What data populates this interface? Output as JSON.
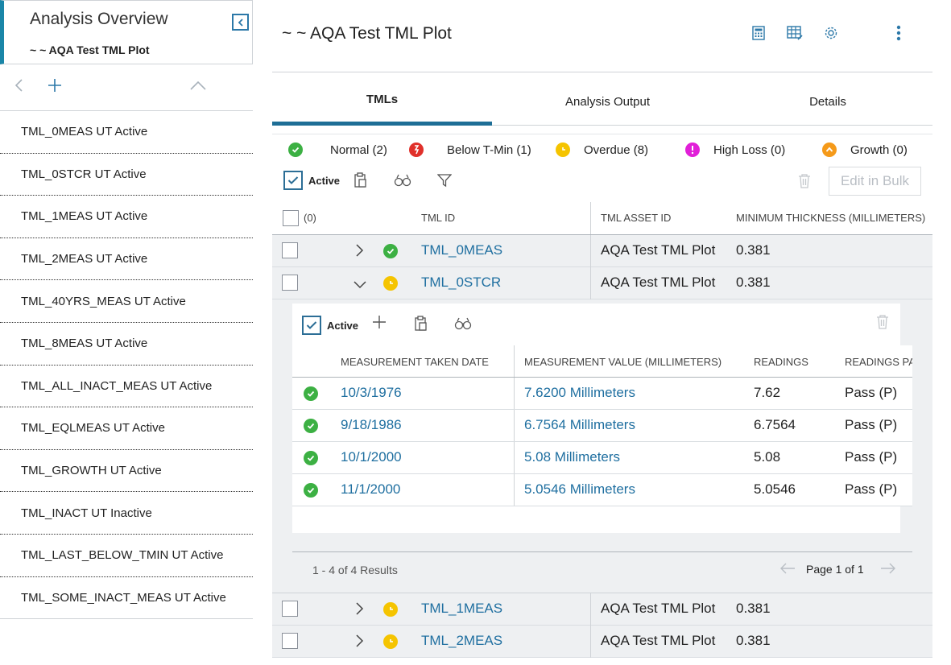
{
  "left": {
    "title": "Analysis Overview",
    "subtitle": "~ ~ AQA Test TML Plot",
    "items": [
      "TML_0MEAS UT Active",
      "TML_0STCR UT Active",
      "TML_1MEAS UT Active",
      "TML_2MEAS UT Active",
      "TML_40YRS_MEAS UT Active",
      "TML_8MEAS UT Active",
      "TML_ALL_INACT_MEAS UT Active",
      "TML_EQLMEAS UT Active",
      "TML_GROWTH UT Active",
      "TML_INACT UT Inactive",
      "TML_LAST_BELOW_TMIN UT Active",
      "TML_SOME_INACT_MEAS UT Active"
    ]
  },
  "header": {
    "title": "~ ~ AQA Test TML Plot"
  },
  "tabs": [
    "TMLs",
    "Analysis Output",
    "Details"
  ],
  "legend": [
    {
      "label": "Normal (2)",
      "color": "#3cb043",
      "icon": "check-icon"
    },
    {
      "label": "Below T-Min (1)",
      "color": "#e0302a",
      "icon": "arrow-down-icon"
    },
    {
      "label": "Overdue (8)",
      "color": "#f5c400",
      "icon": "clock-icon"
    },
    {
      "label": "High Loss (0)",
      "color": "#e11fd8",
      "icon": "exclamation-icon"
    },
    {
      "label": "Growth (0)",
      "color": "#f59a1a",
      "icon": "chevron-up-icon"
    }
  ],
  "toolbar": {
    "active_label": "Active",
    "bulk_label": "Edit in Bulk"
  },
  "grid": {
    "select_count": "(0)",
    "columns": [
      "TML ID",
      "TML ASSET ID",
      "MINIMUM THICKNESS (MILLIMETERS)"
    ],
    "rows": [
      {
        "id": "TML_0MEAS",
        "asset": "AQA Test TML Plot",
        "min": "0.381",
        "status": "normal",
        "expanded": false
      },
      {
        "id": "TML_0STCR",
        "asset": "AQA Test TML Plot",
        "min": "0.381",
        "status": "overdue",
        "expanded": true
      },
      {
        "id": "TML_1MEAS",
        "asset": "AQA Test TML Plot",
        "min": "0.381",
        "status": "overdue",
        "expanded": false
      },
      {
        "id": "TML_2MEAS",
        "asset": "AQA Test TML Plot",
        "min": "0.381",
        "status": "overdue",
        "expanded": false
      }
    ]
  },
  "subgrid": {
    "active_label": "Active",
    "columns": [
      "MEASUREMENT TAKEN DATE",
      "MEASUREMENT VALUE (MILLIMETERS)",
      "READINGS",
      "READINGS PA"
    ],
    "rows": [
      {
        "date": "10/3/1976",
        "value": "7.6200 Millimeters",
        "readings": "7.62",
        "pass": "Pass (P)"
      },
      {
        "date": "9/18/1986",
        "value": "6.7564 Millimeters",
        "readings": "6.7564",
        "pass": "Pass (P)"
      },
      {
        "date": "10/1/2000",
        "value": "5.08 Millimeters",
        "readings": "5.08",
        "pass": "Pass (P)"
      },
      {
        "date": "11/1/2000",
        "value": "5.0546 Millimeters",
        "readings": "5.0546",
        "pass": "Pass (P)"
      }
    ],
    "results": "1 - 4 of 4 Results",
    "page": "Page 1 of 1"
  }
}
